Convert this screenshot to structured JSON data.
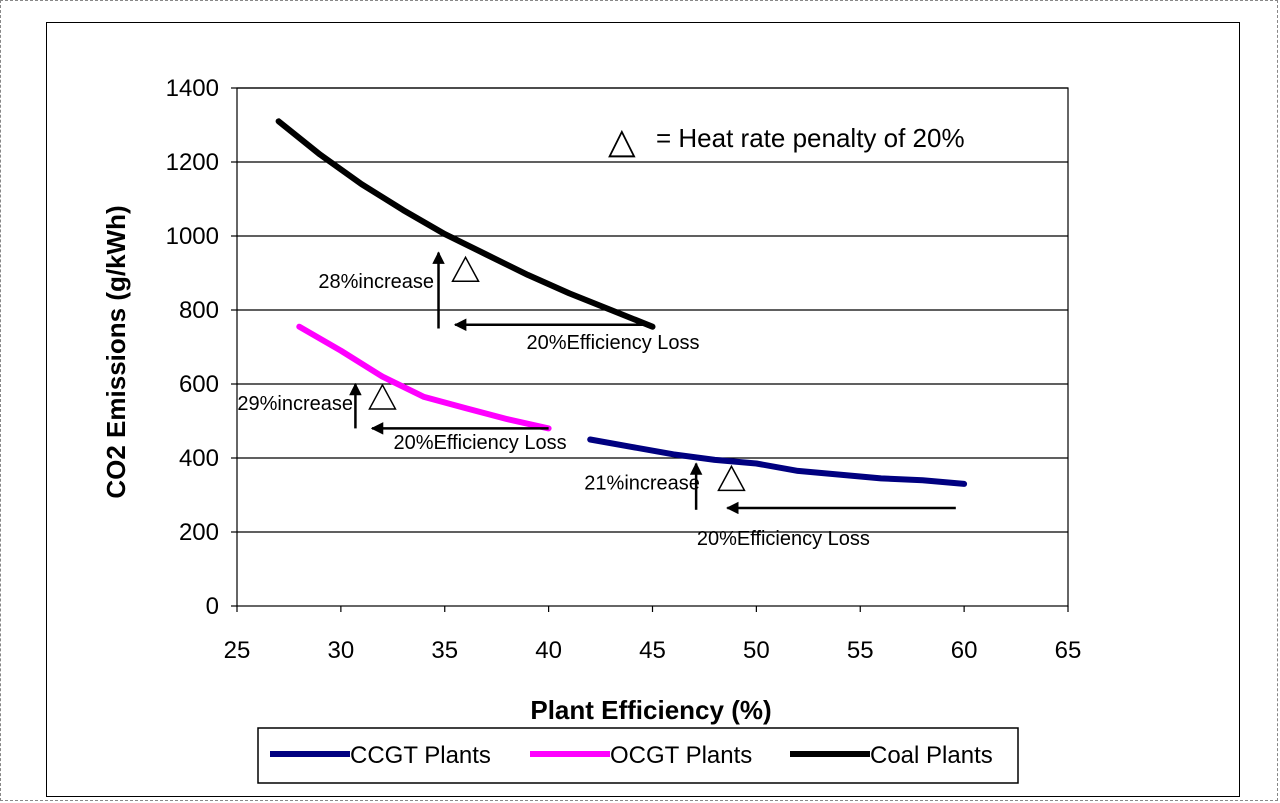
{
  "chart_data": {
    "type": "line",
    "xlabel": "Plant Efficiency (%)",
    "ylabel": "CO2 Emissions (g/kWh)",
    "xlim": [
      25,
      65
    ],
    "ylim": [
      0,
      1400
    ],
    "xticks": [
      25,
      30,
      35,
      40,
      45,
      50,
      55,
      60,
      65
    ],
    "yticks": [
      0,
      200,
      400,
      600,
      800,
      1000,
      1200,
      1400
    ],
    "grid": "horizontal",
    "legend_position": "bottom",
    "series": [
      {
        "name": "CCGT Plants",
        "color": "#000080",
        "x": [
          42,
          44,
          46,
          48,
          50,
          52,
          54,
          56,
          58,
          60
        ],
        "y": [
          450,
          430,
          410,
          395,
          385,
          365,
          355,
          345,
          340,
          330
        ]
      },
      {
        "name": "OCGT Plants",
        "color": "#ff00ff",
        "x": [
          28,
          30,
          32,
          34,
          36,
          38,
          40
        ],
        "y": [
          755,
          690,
          620,
          565,
          535,
          505,
          480
        ]
      },
      {
        "name": "Coal Plants",
        "color": "#000000",
        "x": [
          27,
          29,
          31,
          33,
          35,
          37,
          39,
          41,
          43,
          45
        ],
        "y": [
          1310,
          1220,
          1140,
          1070,
          1005,
          950,
          895,
          845,
          800,
          755
        ]
      }
    ],
    "markers": [
      {
        "x": 36,
        "y": 910
      },
      {
        "x": 32,
        "y": 565
      },
      {
        "x": 48.8,
        "y": 345
      }
    ],
    "marker_legend": {
      "symbol": "△",
      "text": "= Heat rate penalty of 20%"
    },
    "annotations": [
      {
        "text": "28%increase",
        "x": 31.7,
        "y": 860
      },
      {
        "text": "20%Efficiency Loss",
        "x": 43.1,
        "y": 695
      },
      {
        "text": "29%increase",
        "x": 27.8,
        "y": 530
      },
      {
        "text": "20%Efficiency Loss",
        "x": 36.7,
        "y": 425
      },
      {
        "text": "21%increase",
        "x": 44.5,
        "y": 315
      },
      {
        "text": "20%Efficiency Loss",
        "x": 51.3,
        "y": 165
      }
    ],
    "arrows": [
      {
        "from": [
          34.7,
          750
        ],
        "to": [
          34.7,
          955
        ]
      },
      {
        "from": [
          45,
          760
        ],
        "to": [
          35.5,
          760
        ]
      },
      {
        "from": [
          30.7,
          480
        ],
        "to": [
          30.7,
          600
        ]
      },
      {
        "from": [
          40,
          480
        ],
        "to": [
          31.5,
          480
        ]
      },
      {
        "from": [
          47.1,
          260
        ],
        "to": [
          47.1,
          385
        ]
      },
      {
        "from": [
          59.6,
          265
        ],
        "to": [
          48.6,
          265
        ]
      }
    ]
  }
}
